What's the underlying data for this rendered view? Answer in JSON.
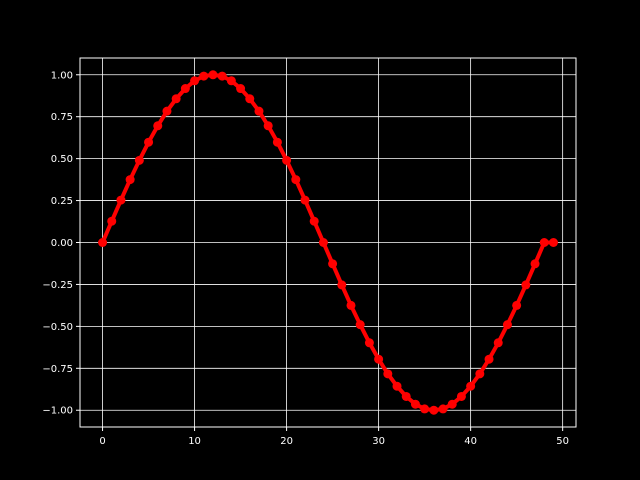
{
  "chart_data": {
    "type": "line",
    "title": "",
    "xlabel": "",
    "ylabel": "",
    "xlim": [
      -2.45,
      51.45
    ],
    "ylim": [
      -1.1,
      1.1
    ],
    "xticks": [
      0,
      10,
      20,
      30,
      40,
      50
    ],
    "xtick_labels": [
      "0",
      "10",
      "20",
      "30",
      "40",
      "50"
    ],
    "yticks": [
      -1.0,
      -0.75,
      -0.5,
      -0.25,
      0.0,
      0.25,
      0.5,
      0.75,
      1.0
    ],
    "ytick_labels": [
      "−1.00",
      "−0.75",
      "−0.50",
      "−0.25",
      "0.00",
      "0.25",
      "0.50",
      "0.75",
      "1.00"
    ],
    "grid": true,
    "series": [
      {
        "name": "",
        "color": "#ff0000",
        "marker": "circle",
        "x": [
          0,
          1,
          2,
          3,
          4,
          5,
          6,
          7,
          8,
          9,
          10,
          11,
          12,
          13,
          14,
          15,
          16,
          17,
          18,
          19,
          20,
          21,
          22,
          23,
          24,
          25,
          26,
          27,
          28,
          29,
          30,
          31,
          32,
          33,
          34,
          35,
          36,
          37,
          38,
          39,
          40,
          41,
          42,
          43,
          44,
          45,
          46,
          47,
          48,
          49
        ],
        "y": [
          0.0,
          0.127,
          0.253,
          0.375,
          0.49,
          0.598,
          0.696,
          0.783,
          0.857,
          0.918,
          0.964,
          0.992,
          1.0,
          0.992,
          0.964,
          0.918,
          0.857,
          0.783,
          0.696,
          0.598,
          0.49,
          0.375,
          0.253,
          0.127,
          0.0,
          -0.127,
          -0.253,
          -0.375,
          -0.49,
          -0.598,
          -0.696,
          -0.783,
          -0.857,
          -0.918,
          -0.964,
          -0.992,
          -1.0,
          -0.992,
          -0.964,
          -0.918,
          -0.857,
          -0.783,
          -0.696,
          -0.598,
          -0.49,
          -0.375,
          -0.253,
          -0.127,
          0.0,
          0.0
        ]
      }
    ]
  },
  "colors": {
    "background": "#000000",
    "axes": "#ffffff",
    "grid": "#ffffff",
    "series": "#ff0000"
  }
}
